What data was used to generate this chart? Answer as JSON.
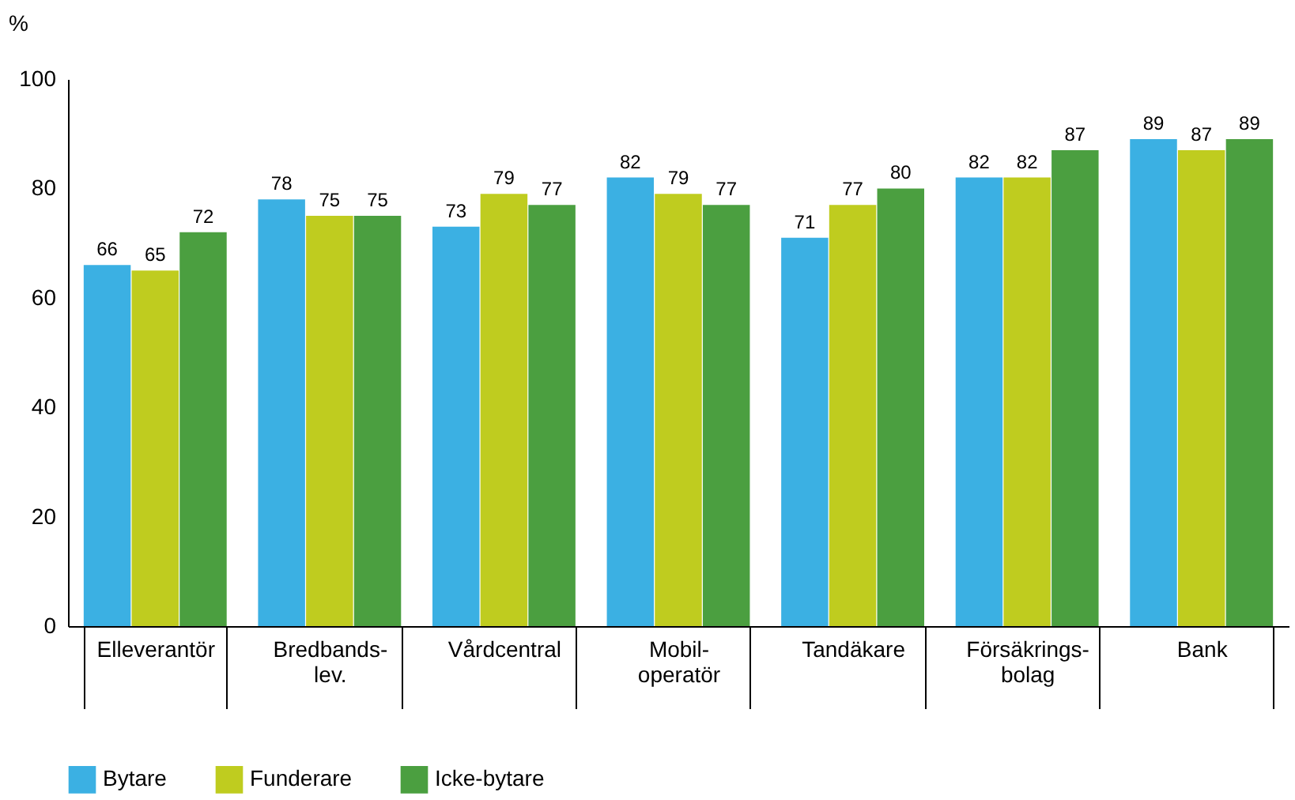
{
  "chart_data": {
    "type": "bar",
    "ylabel": "%",
    "categories": [
      "Elleverantör",
      "Bredbands-\nlev.",
      "Vårdcentral",
      "Mobil-\noperatör",
      "Tandäkare",
      "Försäkrings-\nbolag",
      "Bank"
    ],
    "series": [
      {
        "name": "Bytare",
        "color": "#3bb0e3",
        "values": [
          66,
          78,
          73,
          82,
          71,
          82,
          89
        ]
      },
      {
        "name": "Funderare",
        "color": "#bfcc1f",
        "values": [
          65,
          75,
          79,
          79,
          77,
          82,
          87
        ]
      },
      {
        "name": "Icke-bytare",
        "color": "#4b9f40",
        "values": [
          72,
          75,
          77,
          77,
          80,
          87,
          89
        ]
      }
    ],
    "ylim": [
      0,
      100
    ],
    "yticks": [
      0,
      20,
      40,
      60,
      80,
      100
    ],
    "grid": false,
    "legend": "bottom",
    "data_labels": true
  }
}
